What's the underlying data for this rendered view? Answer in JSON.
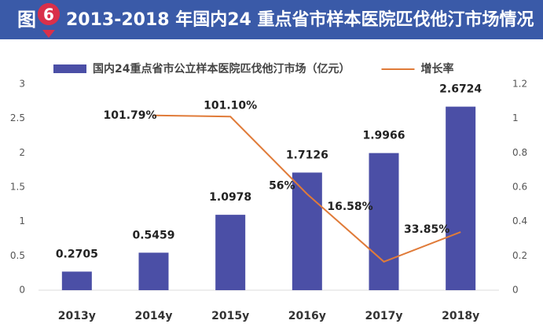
{
  "chart_data": {
    "type": "bar",
    "badge": "图",
    "badge_number": "6",
    "title": "2013-2018 年国内24 重点省市样本医院匹伐他汀市场情况",
    "categories": [
      "2013y",
      "2014y",
      "2015y",
      "2016y",
      "2017y",
      "2018y"
    ],
    "series": [
      {
        "name": "国内24重点省市公立样本医院匹伐他汀市场（亿元）",
        "type": "bar",
        "color": "#4b4fa6",
        "values": [
          0.2705,
          0.5459,
          1.0978,
          1.7126,
          1.9966,
          2.6724
        ]
      },
      {
        "name": "增长率",
        "type": "line",
        "axis": "y2",
        "color": "#e07b39",
        "values": [
          null,
          1.0179,
          1.011,
          0.56,
          0.1658,
          0.3385
        ],
        "value_labels": [
          null,
          "101.79%",
          "101.10%",
          "56%",
          "16.58%",
          "33.85%"
        ]
      }
    ],
    "ylim": [
      0,
      3
    ],
    "yticks": [
      0,
      0.5,
      1,
      1.5,
      2,
      2.5,
      3
    ],
    "y2lim": [
      0,
      1.2
    ],
    "y2ticks": [
      0,
      0.2,
      0.4,
      0.6,
      0.8,
      1,
      1.2
    ],
    "grid": false,
    "legend": "top"
  }
}
